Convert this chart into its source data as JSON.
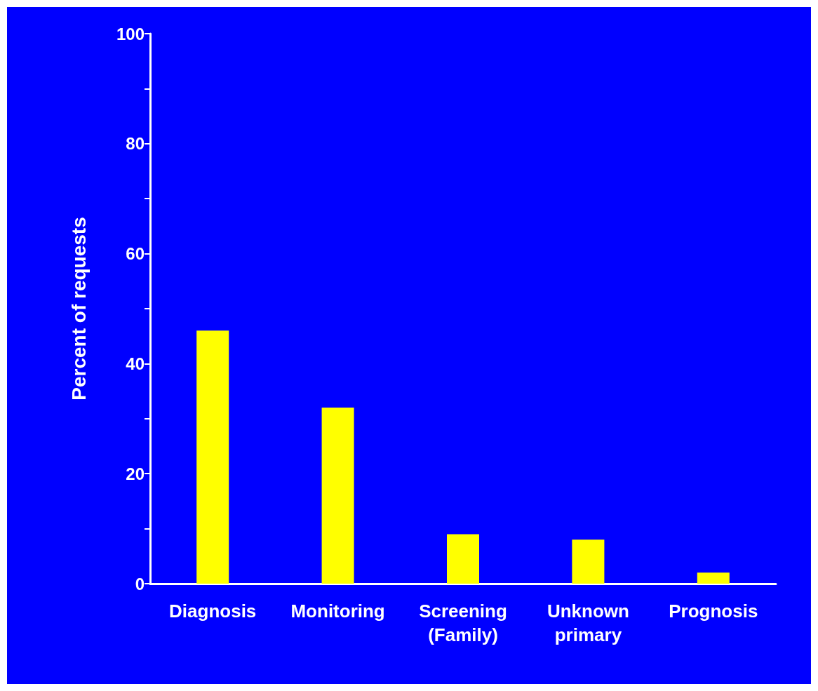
{
  "chart_data": {
    "type": "bar",
    "ylabel": "Percent of requests",
    "categories": [
      "Diagnosis",
      "Monitoring",
      "Screening\n(Family)",
      "Unknown\nprimary",
      "Prognosis"
    ],
    "values": [
      46,
      32,
      9,
      8,
      2
    ],
    "color": "#ffff00",
    "ylim": [
      0,
      100
    ],
    "yticks": [
      0,
      {
        "value": 10,
        "label": null
      },
      20,
      {
        "value": 30,
        "label": null
      },
      40,
      {
        "value": 50,
        "label": null
      },
      60,
      {
        "value": 70,
        "label": null
      },
      80,
      {
        "value": 90,
        "label": null
      },
      100
    ],
    "grid": false
  }
}
